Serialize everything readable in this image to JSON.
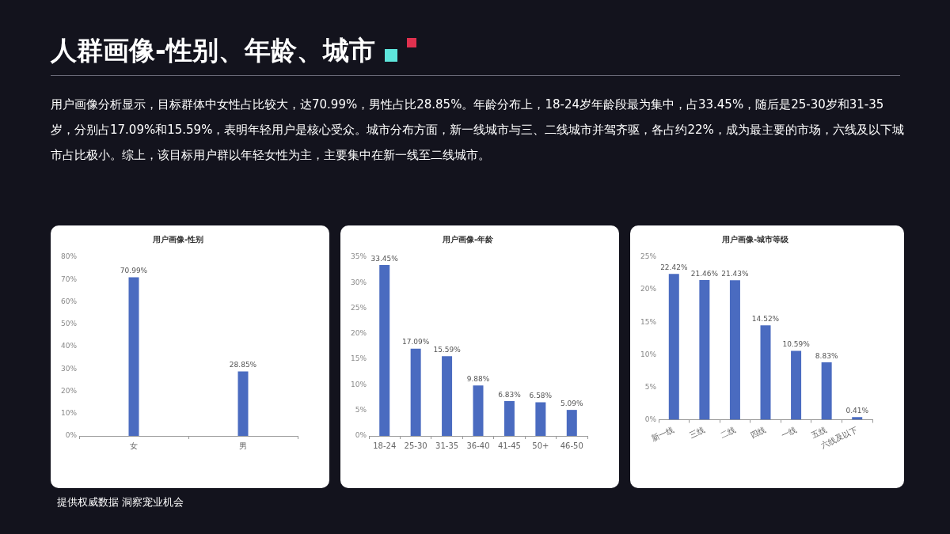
{
  "chart_data": [
    {
      "type": "other",
      "title": "人群画像-性别、年龄、城市",
      "subtitle": "用户画像分析显示，目标群体中女性占比较大，达70.99%，男性占比28.85%。年龄分布上，18-24岁年龄段最为集中，占33.45%，随后是25-30岁和31-35岁，分别占17.09%和15.59%，表明年轻用户是核心受众。城市分布方面，新一线城市与三、二线城市并驾齐驱，各占约22%，成为最主要的市场，六线及以下城市占比极小。综上，该目标用户群以年轻女性为主，主要集中在新一线至二线城市。",
      "annotations": [
        "提供权威数据 洞察宠业机会"
      ]
    },
    {
      "type": "bar",
      "title": "用户画像-性别",
      "categories": [
        "女",
        "男"
      ],
      "values": [
        70.99,
        28.85
      ],
      "value_labels": [
        "70.99%",
        "28.85%"
      ],
      "color": "#4a6bc0",
      "ylim": [
        0,
        80
      ],
      "yticks": [
        {
          "value": 0,
          "label": "0%"
        },
        {
          "value": 10,
          "label": "10%"
        },
        {
          "value": 20,
          "label": "20%"
        },
        {
          "value": 30,
          "label": "30%"
        },
        {
          "value": 40,
          "label": "40%"
        },
        {
          "value": 50,
          "label": "50%"
        },
        {
          "value": 60,
          "label": "60%"
        },
        {
          "value": 70,
          "label": "70%"
        },
        {
          "value": 80,
          "label": "80%"
        }
      ],
      "grid": false,
      "legend": false
    },
    {
      "type": "bar",
      "title": "用户画像-年龄",
      "categories": [
        "18-24",
        "25-30",
        "31-35",
        "36-40",
        "41-45",
        "50+",
        "46-50"
      ],
      "values": [
        33.45,
        17.09,
        15.59,
        9.88,
        6.83,
        6.58,
        5.09
      ],
      "value_labels": [
        "33.45%",
        "17.09%",
        "15.59%",
        "9.88%",
        "6.83%",
        "6.58%",
        "5.09%"
      ],
      "color": "#4a6bc0",
      "ylim": [
        0,
        35
      ],
      "yticks": [
        {
          "value": 0,
          "label": "0%"
        },
        {
          "value": 5,
          "label": "5%"
        },
        {
          "value": 10,
          "label": "10%"
        },
        {
          "value": 15,
          "label": "15%"
        },
        {
          "value": 20,
          "label": "20%"
        },
        {
          "value": 25,
          "label": "25%"
        },
        {
          "value": 30,
          "label": "30%"
        },
        {
          "value": 35,
          "label": "35%"
        }
      ],
      "grid": false,
      "legend": false
    },
    {
      "type": "bar",
      "title": "用户画像-城市等级",
      "categories": [
        "新一线",
        "三线",
        "二线",
        "四线",
        "一线",
        "五线",
        "六线及以下"
      ],
      "values": [
        22.42,
        21.46,
        21.43,
        14.52,
        10.59,
        8.83,
        0.41
      ],
      "value_labels": [
        "22.42%",
        "21.46%",
        "21.43%",
        "14.52%",
        "10.59%",
        "8.83%",
        "0.41%"
      ],
      "color": "#4a6bc0",
      "ylim": [
        0,
        25
      ],
      "yticks": [
        {
          "value": 0,
          "label": "0%"
        },
        {
          "value": 5,
          "label": "5%"
        },
        {
          "value": 10,
          "label": "10%"
        },
        {
          "value": 15,
          "label": "15%"
        },
        {
          "value": 20,
          "label": "20%"
        },
        {
          "value": 25,
          "label": "25%"
        }
      ],
      "grid": false,
      "legend": false
    }
  ]
}
